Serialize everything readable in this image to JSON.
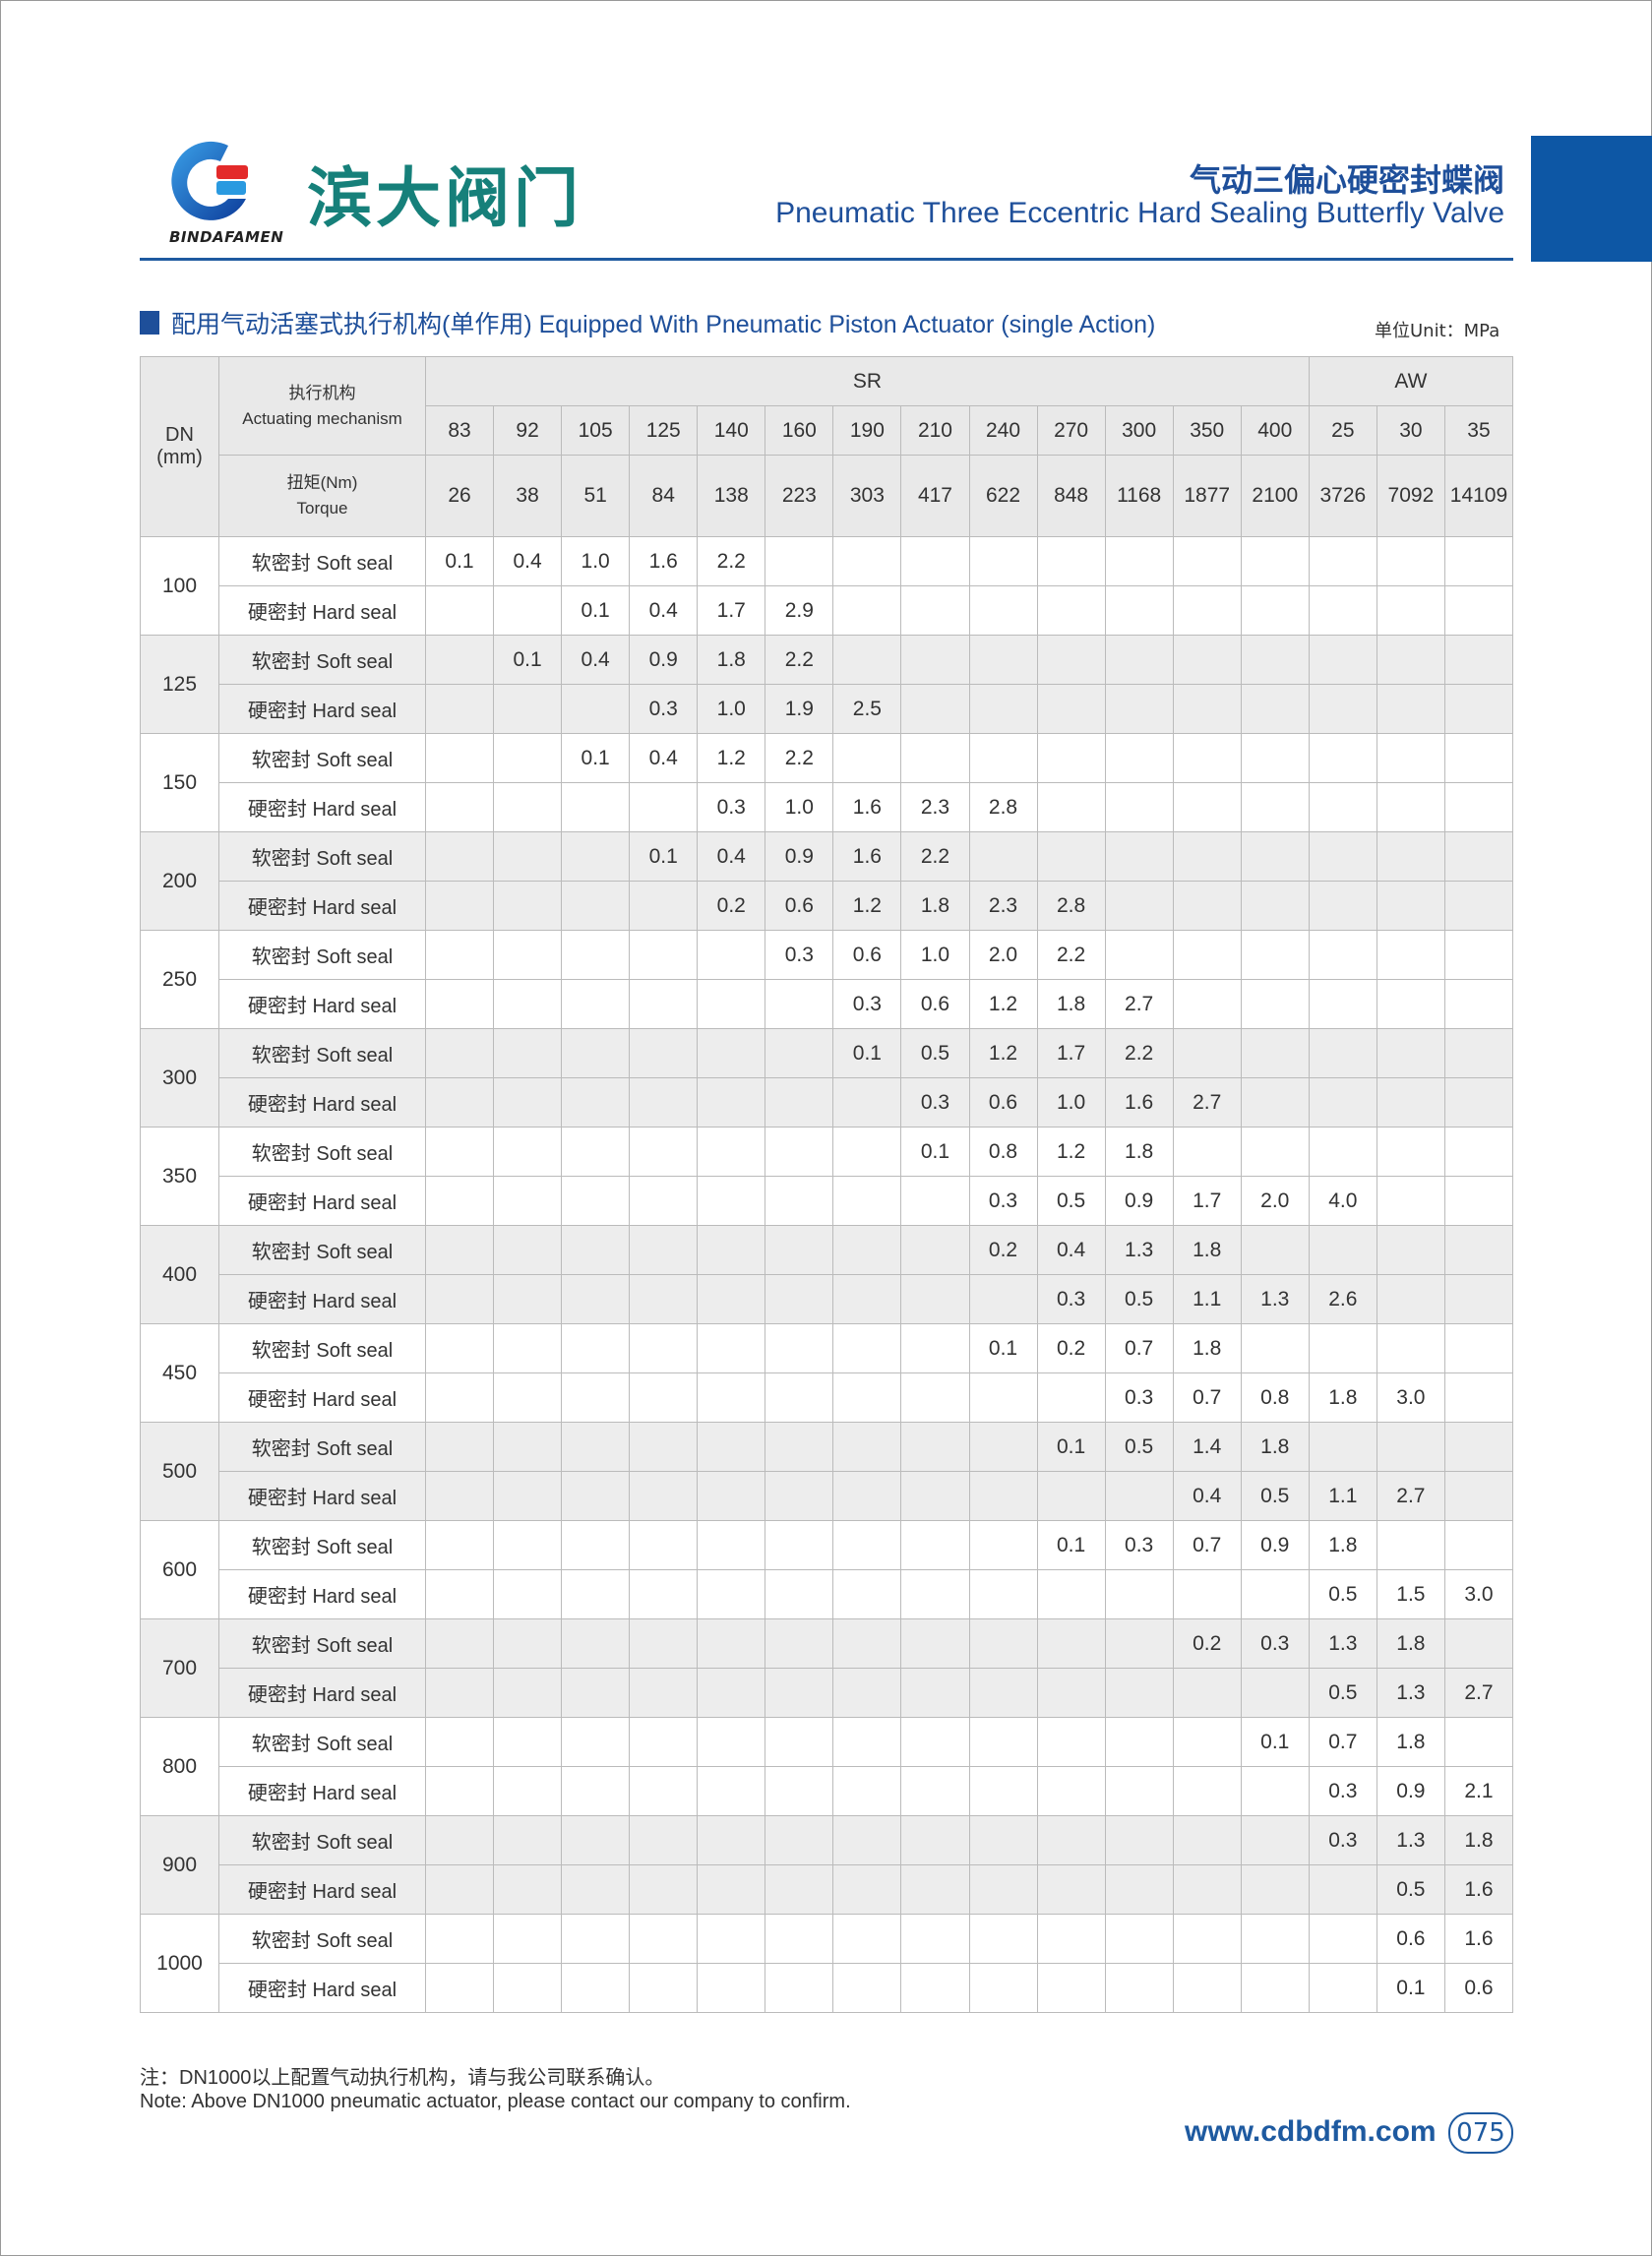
{
  "header": {
    "logo_text": "BINDAFAMEN",
    "brand_cn": "滨大阀门",
    "title_cn": "气动三偏心硬密封蝶阀",
    "title_en": "Pneumatic Three Eccentric Hard Sealing Butterfly Valve",
    "accent_color": "#1e5aa0",
    "brand_color": "#16807a"
  },
  "section": {
    "title": "配用气动活塞式执行机构(单作用) Equipped With Pneumatic Piston Actuator (single Action)",
    "unit": "单位Unit：MPa"
  },
  "table": {
    "dn_header": "DN (mm)",
    "mech_header_cn": "执行机构",
    "mech_header_en": "Actuating mechanism",
    "torque_header_cn": "扭矩(Nm)",
    "torque_header_en": "Torque",
    "group_sr": "SR",
    "group_aw": "AW",
    "models": [
      "83",
      "92",
      "105",
      "125",
      "140",
      "160",
      "190",
      "210",
      "240",
      "270",
      "300",
      "350",
      "400",
      "25",
      "30",
      "35"
    ],
    "torques": [
      "26",
      "38",
      "51",
      "84",
      "138",
      "223",
      "303",
      "417",
      "622",
      "848",
      "1168",
      "1877",
      "2100",
      "3726",
      "7092",
      "14109"
    ],
    "soft_label": "软密封 Soft seal",
    "hard_label": "硬密封 Hard seal",
    "rows": [
      {
        "dn": "100",
        "soft": [
          "0.1",
          "0.4",
          "1.0",
          "1.6",
          "2.2",
          "",
          "",
          "",
          "",
          "",
          "",
          "",
          "",
          "",
          "",
          ""
        ],
        "hard": [
          "",
          "",
          "0.1",
          "0.4",
          "1.7",
          "2.9",
          "",
          "",
          "",
          "",
          "",
          "",
          "",
          "",
          "",
          ""
        ]
      },
      {
        "dn": "125",
        "soft": [
          "",
          "0.1",
          "0.4",
          "0.9",
          "1.8",
          "2.2",
          "",
          "",
          "",
          "",
          "",
          "",
          "",
          "",
          "",
          ""
        ],
        "hard": [
          "",
          "",
          "",
          "0.3",
          "1.0",
          "1.9",
          "2.5",
          "",
          "",
          "",
          "",
          "",
          "",
          "",
          "",
          ""
        ]
      },
      {
        "dn": "150",
        "soft": [
          "",
          "",
          "0.1",
          "0.4",
          "1.2",
          "2.2",
          "",
          "",
          "",
          "",
          "",
          "",
          "",
          "",
          "",
          ""
        ],
        "hard": [
          "",
          "",
          "",
          "",
          "0.3",
          "1.0",
          "1.6",
          "2.3",
          "2.8",
          "",
          "",
          "",
          "",
          "",
          "",
          ""
        ]
      },
      {
        "dn": "200",
        "soft": [
          "",
          "",
          "",
          "0.1",
          "0.4",
          "0.9",
          "1.6",
          "2.2",
          "",
          "",
          "",
          "",
          "",
          "",
          "",
          ""
        ],
        "hard": [
          "",
          "",
          "",
          "",
          "0.2",
          "0.6",
          "1.2",
          "1.8",
          "2.3",
          "2.8",
          "",
          "",
          "",
          "",
          "",
          ""
        ]
      },
      {
        "dn": "250",
        "soft": [
          "",
          "",
          "",
          "",
          "",
          "0.3",
          "0.6",
          "1.0",
          "2.0",
          "2.2",
          "",
          "",
          "",
          "",
          "",
          ""
        ],
        "hard": [
          "",
          "",
          "",
          "",
          "",
          "",
          "0.3",
          "0.6",
          "1.2",
          "1.8",
          "2.7",
          "",
          "",
          "",
          "",
          ""
        ]
      },
      {
        "dn": "300",
        "soft": [
          "",
          "",
          "",
          "",
          "",
          "",
          "0.1",
          "0.5",
          "1.2",
          "1.7",
          "2.2",
          "",
          "",
          "",
          "",
          ""
        ],
        "hard": [
          "",
          "",
          "",
          "",
          "",
          "",
          "",
          "0.3",
          "0.6",
          "1.0",
          "1.6",
          "2.7",
          "",
          "",
          "",
          ""
        ]
      },
      {
        "dn": "350",
        "soft": [
          "",
          "",
          "",
          "",
          "",
          "",
          "",
          "0.1",
          "0.8",
          "1.2",
          "1.8",
          "",
          "",
          "",
          "",
          ""
        ],
        "hard": [
          "",
          "",
          "",
          "",
          "",
          "",
          "",
          "",
          "0.3",
          "0.5",
          "0.9",
          "1.7",
          "2.0",
          "4.0",
          "",
          ""
        ]
      },
      {
        "dn": "400",
        "soft": [
          "",
          "",
          "",
          "",
          "",
          "",
          "",
          "",
          "0.2",
          "0.4",
          "1.3",
          "1.8",
          "",
          "",
          "",
          ""
        ],
        "hard": [
          "",
          "",
          "",
          "",
          "",
          "",
          "",
          "",
          "",
          "0.3",
          "0.5",
          "1.1",
          "1.3",
          "2.6",
          "",
          ""
        ]
      },
      {
        "dn": "450",
        "soft": [
          "",
          "",
          "",
          "",
          "",
          "",
          "",
          "",
          "0.1",
          "0.2",
          "0.7",
          "1.8",
          "",
          "",
          "",
          ""
        ],
        "hard": [
          "",
          "",
          "",
          "",
          "",
          "",
          "",
          "",
          "",
          "",
          "0.3",
          "0.7",
          "0.8",
          "1.8",
          "3.0",
          ""
        ]
      },
      {
        "dn": "500",
        "soft": [
          "",
          "",
          "",
          "",
          "",
          "",
          "",
          "",
          "",
          "0.1",
          "0.5",
          "1.4",
          "1.8",
          "",
          "",
          ""
        ],
        "hard": [
          "",
          "",
          "",
          "",
          "",
          "",
          "",
          "",
          "",
          "",
          "",
          "0.4",
          "0.5",
          "1.1",
          "2.7",
          ""
        ]
      },
      {
        "dn": "600",
        "soft": [
          "",
          "",
          "",
          "",
          "",
          "",
          "",
          "",
          "",
          "0.1",
          "0.3",
          "0.7",
          "0.9",
          "1.8",
          "",
          ""
        ],
        "hard": [
          "",
          "",
          "",
          "",
          "",
          "",
          "",
          "",
          "",
          "",
          "",
          "",
          "",
          "0.5",
          "1.5",
          "3.0"
        ]
      },
      {
        "dn": "700",
        "soft": [
          "",
          "",
          "",
          "",
          "",
          "",
          "",
          "",
          "",
          "",
          "",
          "0.2",
          "0.3",
          "1.3",
          "1.8",
          ""
        ],
        "hard": [
          "",
          "",
          "",
          "",
          "",
          "",
          "",
          "",
          "",
          "",
          "",
          "",
          "",
          "0.5",
          "1.3",
          "2.7"
        ]
      },
      {
        "dn": "800",
        "soft": [
          "",
          "",
          "",
          "",
          "",
          "",
          "",
          "",
          "",
          "",
          "",
          "",
          "0.1",
          "0.7",
          "1.8",
          ""
        ],
        "hard": [
          "",
          "",
          "",
          "",
          "",
          "",
          "",
          "",
          "",
          "",
          "",
          "",
          "",
          "0.3",
          "0.9",
          "2.1"
        ]
      },
      {
        "dn": "900",
        "soft": [
          "",
          "",
          "",
          "",
          "",
          "",
          "",
          "",
          "",
          "",
          "",
          "",
          "",
          "0.3",
          "1.3",
          "1.8"
        ],
        "hard": [
          "",
          "",
          "",
          "",
          "",
          "",
          "",
          "",
          "",
          "",
          "",
          "",
          "",
          "",
          "0.5",
          "1.6"
        ]
      },
      {
        "dn": "1000",
        "soft": [
          "",
          "",
          "",
          "",
          "",
          "",
          "",
          "",
          "",
          "",
          "",
          "",
          "",
          "",
          "0.6",
          "1.6"
        ],
        "hard": [
          "",
          "",
          "",
          "",
          "",
          "",
          "",
          "",
          "",
          "",
          "",
          "",
          "",
          "",
          "0.1",
          "0.6"
        ]
      }
    ]
  },
  "footer": {
    "note_cn": "注：DN1000以上配置气动执行机构，请与我公司联系确认。",
    "note_en": "Note: Above DN1000 pneumatic actuator, please contact our company to confirm.",
    "website": "www.cdbdfm.com",
    "page_number": "075"
  }
}
